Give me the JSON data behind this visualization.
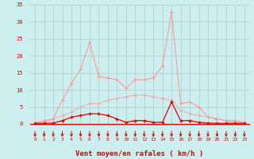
{
  "x": [
    0,
    1,
    2,
    3,
    4,
    5,
    6,
    7,
    8,
    9,
    10,
    11,
    12,
    13,
    14,
    15,
    16,
    17,
    18,
    19,
    20,
    21,
    22,
    23
  ],
  "series1": [
    0.3,
    1.0,
    1.5,
    7,
    12,
    16,
    24,
    14,
    13.5,
    13,
    10.5,
    13,
    13,
    13.5,
    17,
    33,
    6,
    6.5,
    5,
    2,
    1.5,
    1,
    1,
    0.5
  ],
  "series2": [
    0.3,
    0.5,
    1.5,
    2.5,
    3.5,
    5,
    6,
    6,
    7,
    7.5,
    8,
    8.5,
    8.5,
    8,
    7.5,
    7,
    4,
    3,
    2.5,
    2,
    1.5,
    1,
    0.5,
    0.3
  ],
  "series3": [
    0.2,
    0.2,
    0.3,
    1,
    2,
    2.5,
    3,
    3,
    2.5,
    1.5,
    0.5,
    1,
    1,
    0.5,
    0.5,
    6.5,
    1,
    1,
    0.5,
    0.3,
    0.2,
    0.2,
    0.2,
    0.2
  ],
  "color1": "#ff9999",
  "color2": "#ffbbbb",
  "color3": "#dd0000",
  "bg_color": "#cceeee",
  "grid_color": "#aacccc",
  "xlabel": "Vent moyen/en rafales ( km/h )",
  "xlim": [
    -0.5,
    23.5
  ],
  "ylim": [
    0,
    35
  ],
  "yticks": [
    0,
    5,
    10,
    15,
    20,
    25,
    30,
    35
  ],
  "xticks": [
    0,
    1,
    2,
    3,
    4,
    5,
    6,
    7,
    8,
    9,
    10,
    11,
    12,
    13,
    14,
    15,
    16,
    17,
    18,
    19,
    20,
    21,
    22,
    23
  ]
}
